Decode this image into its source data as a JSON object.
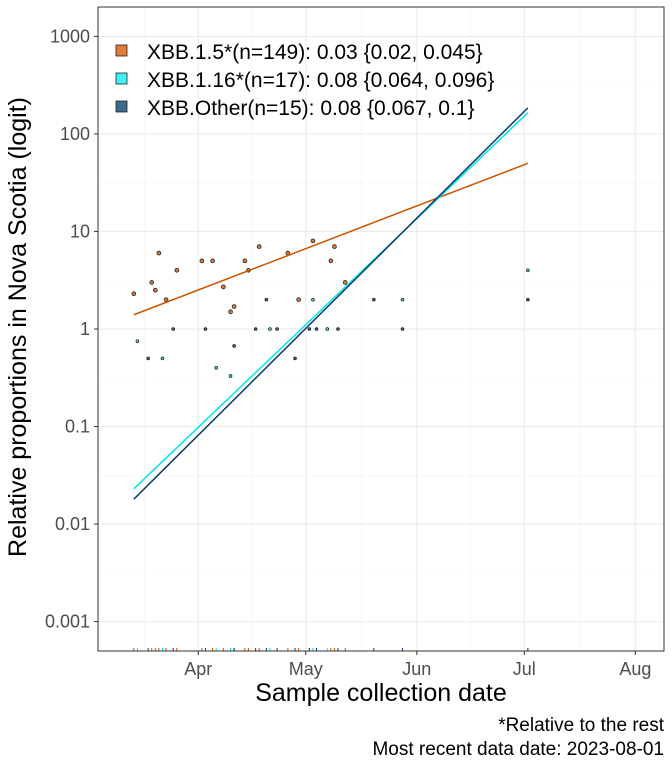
{
  "chart_data": {
    "type": "scatter",
    "title": "",
    "xlabel": "Sample collection date",
    "ylabel": "Relative proportions in Nova Scotia (logit)",
    "y_scale": "log10",
    "ylim": [
      0.0005,
      2000
    ],
    "xlim": [
      "2023-03-04",
      "2023-08-09"
    ],
    "x_ticks": [
      {
        "date": "2023-04-01",
        "label": "Apr"
      },
      {
        "date": "2023-05-01",
        "label": "May"
      },
      {
        "date": "2023-06-01",
        "label": "Jun"
      },
      {
        "date": "2023-07-01",
        "label": "Jul"
      },
      {
        "date": "2023-08-01",
        "label": "Aug"
      }
    ],
    "y_ticks": [
      {
        "value": 0.001,
        "label": "0.001"
      },
      {
        "value": 0.01,
        "label": "0.01"
      },
      {
        "value": 0.1,
        "label": "0.1"
      },
      {
        "value": 1,
        "label": "1"
      },
      {
        "value": 10,
        "label": "10"
      },
      {
        "value": 100,
        "label": "100"
      },
      {
        "value": 1000,
        "label": "1000"
      }
    ],
    "grid": true,
    "legend_position": "top-left",
    "series": [
      {
        "name": "XBB.1.5*(n=149): 0.03 {0.02, 0.045}",
        "color": "#cc5500",
        "fill": "#e07b39",
        "line": [
          {
            "x": "2023-03-14",
            "y": 1.4
          },
          {
            "x": "2023-07-02",
            "y": 50
          }
        ],
        "points": [
          {
            "x": "2023-03-14",
            "y": 2.3
          },
          {
            "x": "2023-03-19",
            "y": 3.0
          },
          {
            "x": "2023-03-20",
            "y": 2.5
          },
          {
            "x": "2023-03-21",
            "y": 6.0
          },
          {
            "x": "2023-03-23",
            "y": 2.0
          },
          {
            "x": "2023-03-26",
            "y": 4.0
          },
          {
            "x": "2023-04-02",
            "y": 5.0
          },
          {
            "x": "2023-04-05",
            "y": 5.0
          },
          {
            "x": "2023-04-08",
            "y": 2.7
          },
          {
            "x": "2023-04-10",
            "y": 1.5
          },
          {
            "x": "2023-04-11",
            "y": 1.7
          },
          {
            "x": "2023-04-14",
            "y": 5.0
          },
          {
            "x": "2023-04-15",
            "y": 4.0
          },
          {
            "x": "2023-04-18",
            "y": 7.0
          },
          {
            "x": "2023-04-26",
            "y": 6.0
          },
          {
            "x": "2023-04-29",
            "y": 2.0
          },
          {
            "x": "2023-05-03",
            "y": 8.0
          },
          {
            "x": "2023-05-08",
            "y": 5.0
          },
          {
            "x": "2023-05-09",
            "y": 7.0
          },
          {
            "x": "2023-05-12",
            "y": 3.0
          }
        ]
      },
      {
        "name": "XBB.1.16*(n=17): 0.08 {0.064, 0.096}",
        "color": "#00e5ee",
        "fill": "#40f0f5",
        "line": [
          {
            "x": "2023-03-14",
            "y": 0.023
          },
          {
            "x": "2023-07-02",
            "y": 165
          }
        ],
        "points": [
          {
            "x": "2023-03-15",
            "y": 0.75
          },
          {
            "x": "2023-03-22",
            "y": 0.5
          },
          {
            "x": "2023-04-06",
            "y": 0.4
          },
          {
            "x": "2023-04-10",
            "y": 0.33
          },
          {
            "x": "2023-04-21",
            "y": 1.0
          },
          {
            "x": "2023-05-03",
            "y": 2.0
          },
          {
            "x": "2023-05-07",
            "y": 1.0
          },
          {
            "x": "2023-05-28",
            "y": 2.0
          },
          {
            "x": "2023-07-02",
            "y": 4.0
          }
        ]
      },
      {
        "name": "XBB.Other(n=15): 0.08 {0.067, 0.1}",
        "color": "#0d3b66",
        "fill": "#3d6b8c",
        "line": [
          {
            "x": "2023-03-14",
            "y": 0.018
          },
          {
            "x": "2023-07-02",
            "y": 185
          }
        ],
        "points": [
          {
            "x": "2023-03-18",
            "y": 0.5
          },
          {
            "x": "2023-03-25",
            "y": 1.0
          },
          {
            "x": "2023-04-03",
            "y": 1.0
          },
          {
            "x": "2023-04-11",
            "y": 0.67
          },
          {
            "x": "2023-04-17",
            "y": 1.0
          },
          {
            "x": "2023-04-20",
            "y": 2.0
          },
          {
            "x": "2023-04-23",
            "y": 1.0
          },
          {
            "x": "2023-04-28",
            "y": 0.5
          },
          {
            "x": "2023-05-02",
            "y": 1.0
          },
          {
            "x": "2023-05-04",
            "y": 1.0
          },
          {
            "x": "2023-05-10",
            "y": 1.0
          },
          {
            "x": "2023-05-20",
            "y": 2.0
          },
          {
            "x": "2023-05-28",
            "y": 1.0
          },
          {
            "x": "2023-07-02",
            "y": 2.0
          }
        ]
      }
    ]
  },
  "caption": {
    "line1": "*Relative to the rest",
    "line2": "Most recent data date: 2023-08-01"
  }
}
